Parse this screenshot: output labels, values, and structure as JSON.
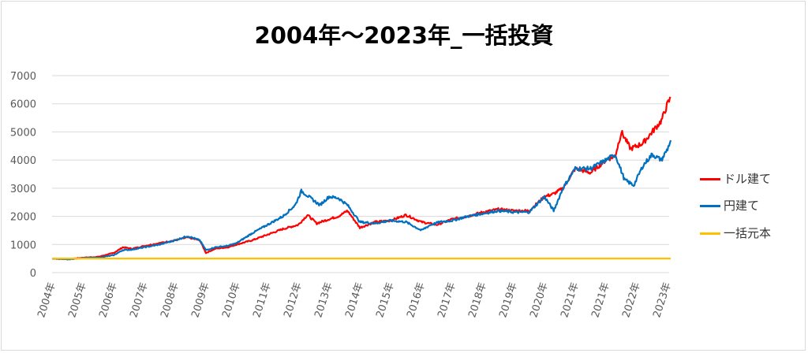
{
  "chart_data": {
    "type": "line",
    "title": "2004年～2023年_一括投資",
    "xlabel": "",
    "ylabel": "",
    "ylim": [
      0,
      7000
    ],
    "yticks": [
      "0",
      "1000",
      "2000",
      "3000",
      "4000",
      "5000",
      "6000",
      "7000"
    ],
    "categories": [
      "2004年",
      "2005年",
      "2006年",
      "2007年",
      "2008年",
      "2009年",
      "2010年",
      "2011年",
      "2012年",
      "2013年",
      "2014年",
      "2015年",
      "2016年",
      "2017年",
      "2018年",
      "2019年",
      "2020年",
      "2021年",
      "2021年",
      "2022年",
      "2023年"
    ],
    "grid": true,
    "legend": "right",
    "series": [
      {
        "name": "ドル建て",
        "color": "#FF0000",
        "points": [
          [
            0,
            500
          ],
          [
            0.5,
            480
          ],
          [
            1,
            530
          ],
          [
            1.5,
            560
          ],
          [
            2,
            700
          ],
          [
            2.3,
            900
          ],
          [
            2.6,
            850
          ],
          [
            3,
            950
          ],
          [
            3.5,
            1050
          ],
          [
            4,
            1150
          ],
          [
            4.4,
            1250
          ],
          [
            4.8,
            1150
          ],
          [
            5,
            700
          ],
          [
            5.3,
            850
          ],
          [
            5.7,
            900
          ],
          [
            6,
            1000
          ],
          [
            6.5,
            1150
          ],
          [
            7,
            1350
          ],
          [
            7.5,
            1550
          ],
          [
            8,
            1700
          ],
          [
            8.3,
            2050
          ],
          [
            8.6,
            1750
          ],
          [
            9,
            1900
          ],
          [
            9.3,
            2000
          ],
          [
            9.6,
            2200
          ],
          [
            10,
            1600
          ],
          [
            10.5,
            1800
          ],
          [
            11,
            1850
          ],
          [
            11.5,
            2050
          ],
          [
            12,
            1800
          ],
          [
            12.5,
            1700
          ],
          [
            13,
            1900
          ],
          [
            13.5,
            2000
          ],
          [
            14,
            2150
          ],
          [
            14.5,
            2250
          ],
          [
            15,
            2200
          ],
          [
            15.5,
            2200
          ],
          [
            16,
            2700
          ],
          [
            16.3,
            2800
          ],
          [
            16.6,
            3000
          ],
          [
            17,
            3700
          ],
          [
            17.5,
            3550
          ],
          [
            18,
            4000
          ],
          [
            18.3,
            4150
          ],
          [
            18.5,
            5000
          ],
          [
            18.8,
            4400
          ],
          [
            19.2,
            4600
          ],
          [
            19.5,
            5000
          ],
          [
            19.8,
            5400
          ],
          [
            20,
            6000
          ],
          [
            20.1,
            6200
          ]
        ]
      },
      {
        "name": "円建て",
        "color": "#0070C0",
        "points": [
          [
            0,
            500
          ],
          [
            0.5,
            470
          ],
          [
            1,
            520
          ],
          [
            1.5,
            530
          ],
          [
            2,
            620
          ],
          [
            2.3,
            800
          ],
          [
            2.6,
            820
          ],
          [
            3,
            900
          ],
          [
            3.5,
            1000
          ],
          [
            4,
            1150
          ],
          [
            4.4,
            1300
          ],
          [
            4.8,
            1150
          ],
          [
            5,
            800
          ],
          [
            5.3,
            900
          ],
          [
            5.7,
            950
          ],
          [
            6,
            1050
          ],
          [
            6.5,
            1400
          ],
          [
            7,
            1700
          ],
          [
            7.5,
            2000
          ],
          [
            7.9,
            2400
          ],
          [
            8.1,
            2900
          ],
          [
            8.4,
            2650
          ],
          [
            8.7,
            2400
          ],
          [
            9,
            2700
          ],
          [
            9.3,
            2650
          ],
          [
            9.6,
            2400
          ],
          [
            10,
            1800
          ],
          [
            10.5,
            1750
          ],
          [
            11,
            1850
          ],
          [
            11.5,
            1800
          ],
          [
            12,
            1500
          ],
          [
            12.3,
            1700
          ],
          [
            12.6,
            1800
          ],
          [
            13,
            1850
          ],
          [
            13.5,
            2000
          ],
          [
            14,
            2100
          ],
          [
            14.5,
            2200
          ],
          [
            15,
            2150
          ],
          [
            15.5,
            2150
          ],
          [
            16,
            2700
          ],
          [
            16.3,
            2200
          ],
          [
            16.6,
            3000
          ],
          [
            17,
            3700
          ],
          [
            17.5,
            3700
          ],
          [
            18,
            4000
          ],
          [
            18.3,
            4200
          ],
          [
            18.6,
            3300
          ],
          [
            18.9,
            3100
          ],
          [
            19.2,
            3800
          ],
          [
            19.5,
            4200
          ],
          [
            19.8,
            4000
          ],
          [
            20,
            4400
          ],
          [
            20.1,
            4700
          ]
        ]
      },
      {
        "name": "一括元本",
        "color": "#FFC000",
        "points": [
          [
            0,
            500
          ],
          [
            20.1,
            500
          ]
        ]
      }
    ]
  }
}
